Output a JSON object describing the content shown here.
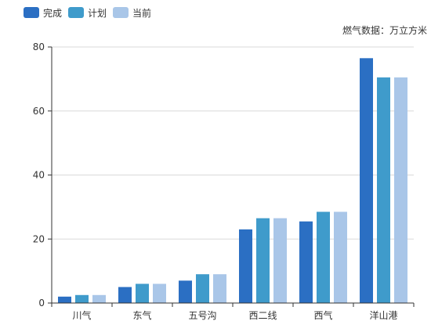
{
  "chart_data": {
    "type": "bar",
    "unit_note": "燃气数据：万立方米",
    "categories": [
      "川气",
      "东气",
      "五号沟",
      "西二线",
      "西气",
      "洋山港"
    ],
    "series": [
      {
        "name": "完成",
        "color": "#2b6fc3",
        "values": [
          2,
          5,
          7,
          23,
          25.5,
          76.5
        ]
      },
      {
        "name": "计划",
        "color": "#3f9bcb",
        "values": [
          2.5,
          6,
          9,
          26.5,
          28.5,
          70.5
        ]
      },
      {
        "name": "当前",
        "color": "#a9c6e8",
        "values": [
          2.5,
          6,
          9,
          26.5,
          28.5,
          70.5
        ]
      }
    ],
    "ylim": [
      0,
      80
    ],
    "yticks": [
      0,
      20,
      40,
      60,
      80
    ],
    "grid": true,
    "legend_position": "top-left"
  }
}
